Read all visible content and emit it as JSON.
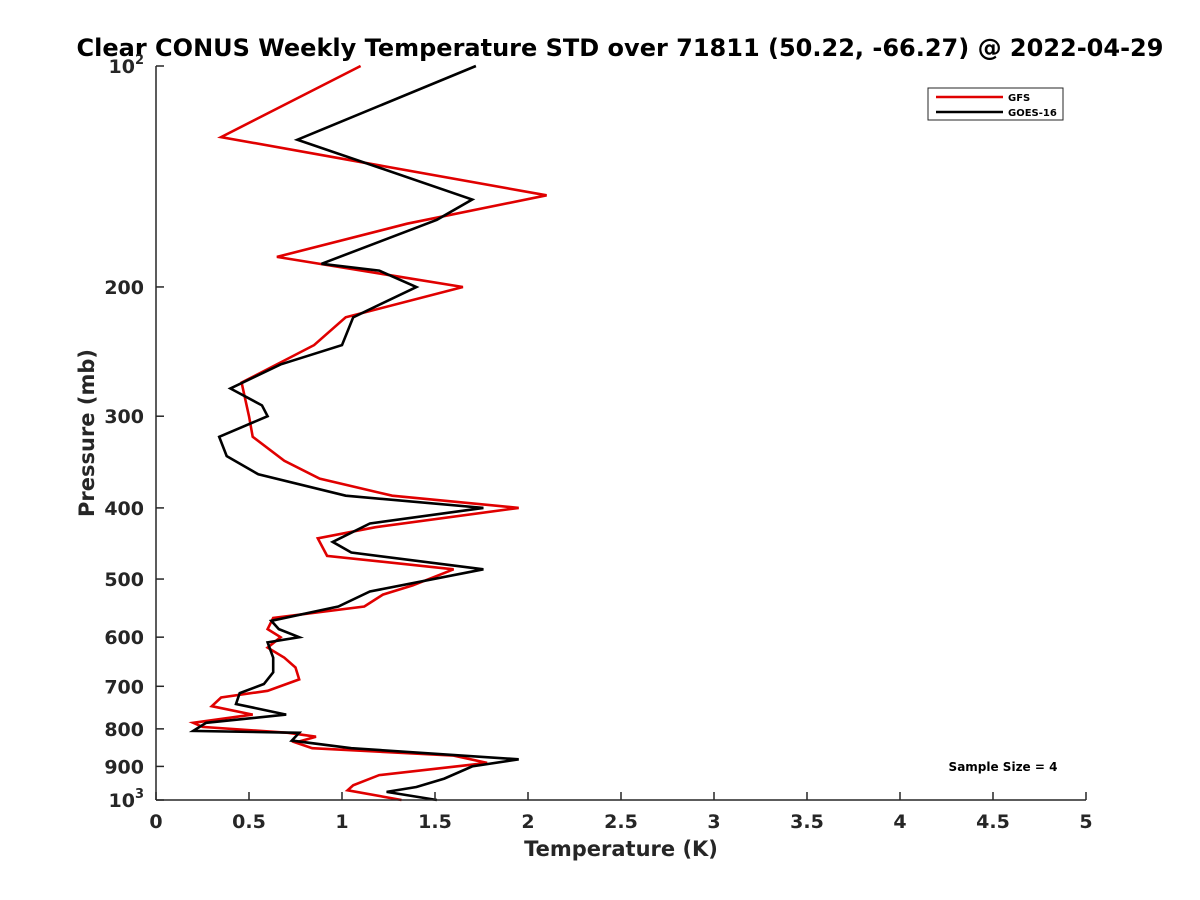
{
  "chart_data": {
    "type": "line",
    "title": "Clear CONUS Weekly Temperature STD over 71811 (50.22, -66.27) @ 2022-04-29",
    "xlabel": "Temperature (K)",
    "ylabel": "Pressure (mb)",
    "xlim": [
      0,
      5
    ],
    "ylim": [
      100,
      1000
    ],
    "y_scale": "log",
    "y_reversed": true,
    "grid": false,
    "legend_position": "top-right",
    "x_ticks": [
      {
        "value": 0,
        "label": "0"
      },
      {
        "value": 0.5,
        "label": "0.5"
      },
      {
        "value": 1,
        "label": "1"
      },
      {
        "value": 1.5,
        "label": "1.5"
      },
      {
        "value": 2,
        "label": "2"
      },
      {
        "value": 2.5,
        "label": "2.5"
      },
      {
        "value": 3,
        "label": "3"
      },
      {
        "value": 3.5,
        "label": "3.5"
      },
      {
        "value": 4,
        "label": "4"
      },
      {
        "value": 4.5,
        "label": "4.5"
      },
      {
        "value": 5,
        "label": "5"
      }
    ],
    "y_ticks": [
      {
        "value": 100,
        "label": "10",
        "sup": "2"
      },
      {
        "value": 200,
        "label": "200"
      },
      {
        "value": 300,
        "label": "300"
      },
      {
        "value": 400,
        "label": "400"
      },
      {
        "value": 500,
        "label": "500"
      },
      {
        "value": 600,
        "label": "600"
      },
      {
        "value": 700,
        "label": "700"
      },
      {
        "value": 800,
        "label": "800"
      },
      {
        "value": 900,
        "label": "900"
      },
      {
        "value": 1000,
        "label": "10",
        "sup": "3"
      }
    ],
    "series": [
      {
        "name": "GFS",
        "color": "#e00000",
        "points": [
          [
            1.1,
            100
          ],
          [
            0.35,
            125
          ],
          [
            2.1,
            150
          ],
          [
            1.35,
            164
          ],
          [
            0.65,
            182
          ],
          [
            1.65,
            200
          ],
          [
            1.02,
            220
          ],
          [
            0.85,
            240
          ],
          [
            0.46,
            270
          ],
          [
            0.5,
            300
          ],
          [
            0.52,
            320
          ],
          [
            0.69,
            345
          ],
          [
            0.88,
            365
          ],
          [
            1.27,
            385
          ],
          [
            1.95,
            400
          ],
          [
            1.18,
            425
          ],
          [
            0.87,
            440
          ],
          [
            0.92,
            465
          ],
          [
            1.6,
            485
          ],
          [
            1.38,
            510
          ],
          [
            1.22,
            525
          ],
          [
            1.12,
            545
          ],
          [
            0.63,
            565
          ],
          [
            0.6,
            585
          ],
          [
            0.67,
            600
          ],
          [
            0.6,
            620
          ],
          [
            0.69,
            640
          ],
          [
            0.75,
            660
          ],
          [
            0.77,
            685
          ],
          [
            0.6,
            710
          ],
          [
            0.35,
            725
          ],
          [
            0.3,
            745
          ],
          [
            0.52,
            765
          ],
          [
            0.2,
            785
          ],
          [
            0.25,
            795
          ],
          [
            0.71,
            810
          ],
          [
            0.86,
            820
          ],
          [
            0.75,
            835
          ],
          [
            0.84,
            850
          ],
          [
            1.6,
            870
          ],
          [
            1.78,
            890
          ],
          [
            1.2,
            925
          ],
          [
            1.06,
            955
          ],
          [
            1.03,
            970
          ],
          [
            1.32,
            1000
          ]
        ]
      },
      {
        "name": "GOES-16",
        "color": "#000000",
        "points": [
          [
            1.72,
            100
          ],
          [
            0.76,
            126
          ],
          [
            1.7,
            152
          ],
          [
            1.51,
            162
          ],
          [
            0.89,
            186
          ],
          [
            1.2,
            190
          ],
          [
            1.4,
            200
          ],
          [
            1.06,
            220
          ],
          [
            1.0,
            240
          ],
          [
            0.67,
            255
          ],
          [
            0.4,
            275
          ],
          [
            0.57,
            290
          ],
          [
            0.6,
            300
          ],
          [
            0.34,
            320
          ],
          [
            0.38,
            340
          ],
          [
            0.55,
            360
          ],
          [
            1.02,
            385
          ],
          [
            1.76,
            400
          ],
          [
            1.15,
            420
          ],
          [
            0.95,
            445
          ],
          [
            1.05,
            460
          ],
          [
            1.76,
            485
          ],
          [
            1.15,
            520
          ],
          [
            0.98,
            545
          ],
          [
            0.62,
            570
          ],
          [
            0.66,
            585
          ],
          [
            0.77,
            600
          ],
          [
            0.6,
            610
          ],
          [
            0.63,
            640
          ],
          [
            0.63,
            670
          ],
          [
            0.58,
            695
          ],
          [
            0.45,
            715
          ],
          [
            0.43,
            740
          ],
          [
            0.7,
            765
          ],
          [
            0.27,
            785
          ],
          [
            0.2,
            805
          ],
          [
            0.77,
            810
          ],
          [
            0.73,
            830
          ],
          [
            1.05,
            850
          ],
          [
            1.95,
            880
          ],
          [
            1.7,
            900
          ],
          [
            1.55,
            935
          ],
          [
            1.4,
            960
          ],
          [
            1.24,
            975
          ],
          [
            1.51,
            1000
          ]
        ]
      }
    ],
    "annotation": "Sample Size = 4"
  }
}
